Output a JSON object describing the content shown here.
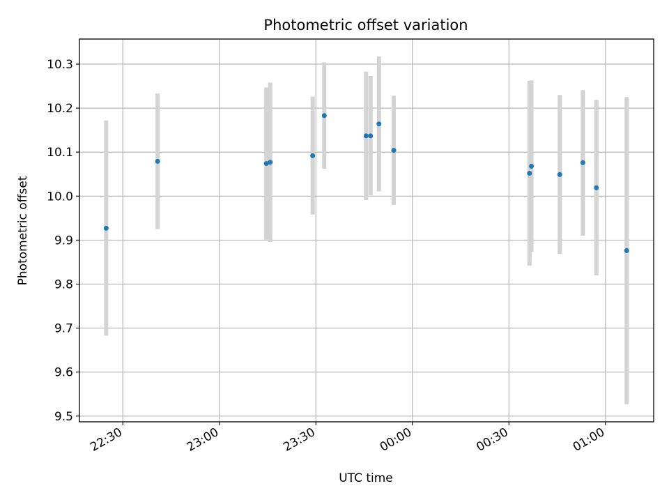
{
  "chart_data": {
    "type": "scatter",
    "title": "Photometric offset variation",
    "xlabel": "UTC time",
    "ylabel": "Photometric offset",
    "x_ticks": [
      "22:30",
      "23:00",
      "23:30",
      "00:00",
      "00:30",
      "01:00"
    ],
    "y_ticks": [
      "9.5",
      "9.6",
      "9.7",
      "9.8",
      "9.9",
      "10.0",
      "10.1",
      "10.2",
      "10.3"
    ],
    "x_unit": "minutes after 22:00 UTC",
    "xlim": [
      16.5,
      195.0
    ],
    "ylim": [
      9.487,
      10.357
    ],
    "grid": true,
    "colors": {
      "points": "#1f77b4",
      "errorbars": "#d3d3d3",
      "grid": "#b0b0b0"
    },
    "points": [
      {
        "x": 24.8,
        "y": 9.927,
        "low": 9.683,
        "high": 10.172
      },
      {
        "x": 40.8,
        "y": 10.079,
        "low": 9.925,
        "high": 10.233
      },
      {
        "x": 74.6,
        "y": 10.074,
        "low": 9.901,
        "high": 10.247
      },
      {
        "x": 75.8,
        "y": 10.077,
        "low": 9.896,
        "high": 10.258
      },
      {
        "x": 89.0,
        "y": 10.092,
        "low": 9.958,
        "high": 10.226
      },
      {
        "x": 92.6,
        "y": 10.183,
        "low": 10.062,
        "high": 10.304
      },
      {
        "x": 105.6,
        "y": 10.137,
        "low": 9.991,
        "high": 10.283
      },
      {
        "x": 107.0,
        "y": 10.137,
        "low": 10.002,
        "high": 10.273
      },
      {
        "x": 109.6,
        "y": 10.164,
        "low": 10.011,
        "high": 10.317
      },
      {
        "x": 114.2,
        "y": 10.104,
        "low": 9.98,
        "high": 10.228
      },
      {
        "x": 156.4,
        "y": 10.052,
        "low": 9.842,
        "high": 10.262
      },
      {
        "x": 157.0,
        "y": 10.068,
        "low": 9.873,
        "high": 10.263
      },
      {
        "x": 165.8,
        "y": 10.049,
        "low": 9.869,
        "high": 10.23
      },
      {
        "x": 173.0,
        "y": 10.076,
        "low": 9.91,
        "high": 10.241
      },
      {
        "x": 177.2,
        "y": 10.019,
        "low": 9.82,
        "high": 10.219
      },
      {
        "x": 186.6,
        "y": 9.876,
        "low": 9.527,
        "high": 10.225
      }
    ]
  }
}
